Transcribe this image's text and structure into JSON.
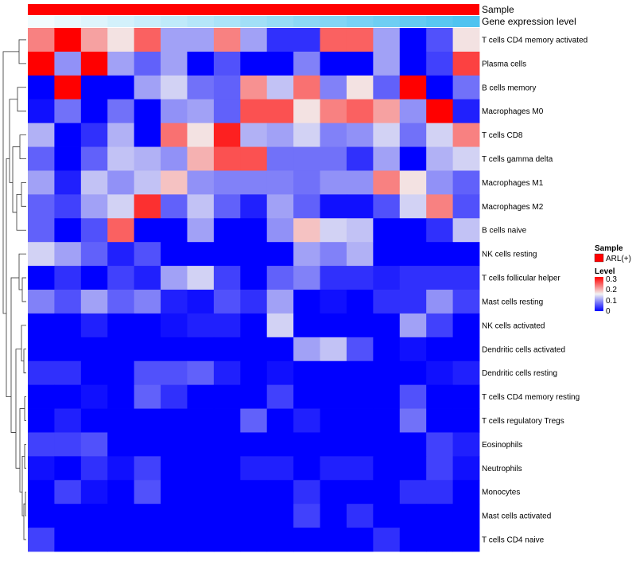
{
  "chart_data": {
    "type": "heatmap",
    "annotation_tracks": [
      "Sample",
      "Gene expression level"
    ],
    "sample_track_color": "#ff0000",
    "gene_expression_gradient": [
      "#f2fbfe",
      "#4fc3f0"
    ],
    "row_labels": [
      "T cells CD4 memory activated",
      "Plasma cells",
      "B cells memory",
      "Macrophages M0",
      "T cells CD8",
      "T cells gamma delta",
      "Macrophages M1",
      "Macrophages M2",
      "B cells naive",
      "NK cells resting",
      "T cells follicular helper",
      "Mast cells resting",
      "NK cells activated",
      "Dendritic cells activated",
      "Dendritic cells resting",
      "T cells CD4 memory resting",
      "T cells regulatory  Tregs",
      "Eosinophils",
      "Neutrophils",
      "Monocytes",
      "Mast cells activated",
      "T cells CD4 naive"
    ],
    "values": [
      [
        0.22,
        0.3,
        0.2,
        0.16,
        0.24,
        0.1,
        0.1,
        0.22,
        0.1,
        0.03,
        0.03,
        0.24,
        0.24,
        0.1,
        0.0,
        0.05,
        0.16
      ],
      [
        0.3,
        0.09,
        0.3,
        0.1,
        0.06,
        0.1,
        0.0,
        0.05,
        0.0,
        0.0,
        0.08,
        0.0,
        0.0,
        0.1,
        0.0,
        0.04,
        0.26
      ],
      [
        0.0,
        0.3,
        0.0,
        0.0,
        0.1,
        0.13,
        0.07,
        0.06,
        0.21,
        0.12,
        0.23,
        0.08,
        0.16,
        0.06,
        0.3,
        0.0,
        0.07
      ],
      [
        0.01,
        0.07,
        0.0,
        0.07,
        0.0,
        0.09,
        0.1,
        0.06,
        0.25,
        0.25,
        0.16,
        0.22,
        0.24,
        0.2,
        0.09,
        0.3,
        0.02
      ],
      [
        0.11,
        0.0,
        0.03,
        0.11,
        0.0,
        0.23,
        0.16,
        0.28,
        0.11,
        0.1,
        0.13,
        0.08,
        0.09,
        0.13,
        0.07,
        0.13,
        0.22
      ],
      [
        0.06,
        0.0,
        0.06,
        0.12,
        0.11,
        0.09,
        0.19,
        0.25,
        0.25,
        0.07,
        0.07,
        0.07,
        0.03,
        0.1,
        0.0,
        0.11,
        0.13
      ],
      [
        0.1,
        0.02,
        0.12,
        0.09,
        0.12,
        0.18,
        0.09,
        0.08,
        0.08,
        0.08,
        0.07,
        0.09,
        0.09,
        0.22,
        0.16,
        0.09,
        0.06
      ],
      [
        0.06,
        0.04,
        0.1,
        0.13,
        0.27,
        0.06,
        0.12,
        0.06,
        0.02,
        0.1,
        0.06,
        0.01,
        0.01,
        0.05,
        0.13,
        0.22,
        0.05
      ],
      [
        0.06,
        0.0,
        0.05,
        0.24,
        0.0,
        0.0,
        0.1,
        0.0,
        0.0,
        0.09,
        0.18,
        0.13,
        0.12,
        0.0,
        0.0,
        0.03,
        0.12
      ],
      [
        0.13,
        0.1,
        0.06,
        0.02,
        0.05,
        0.0,
        0.0,
        0.0,
        0.0,
        0.0,
        0.1,
        0.08,
        0.11,
        0.0,
        0.0,
        0.0,
        0.0
      ],
      [
        0.0,
        0.03,
        0.0,
        0.04,
        0.02,
        0.1,
        0.13,
        0.04,
        0.0,
        0.06,
        0.08,
        0.03,
        0.03,
        0.02,
        0.03,
        0.03,
        0.03
      ],
      [
        0.08,
        0.05,
        0.1,
        0.06,
        0.08,
        0.02,
        0.01,
        0.05,
        0.03,
        0.1,
        0.0,
        0.01,
        0.0,
        0.03,
        0.03,
        0.09,
        0.04
      ],
      [
        0.0,
        0.0,
        0.02,
        0.0,
        0.0,
        0.01,
        0.02,
        0.02,
        0.0,
        0.13,
        0.0,
        0.0,
        0.0,
        0.0,
        0.1,
        0.04,
        0.0
      ],
      [
        0.0,
        0.0,
        0.0,
        0.0,
        0.0,
        0.0,
        0.0,
        0.0,
        0.0,
        0.0,
        0.1,
        0.12,
        0.05,
        0.0,
        0.01,
        0.0,
        0.0
      ],
      [
        0.03,
        0.03,
        0.0,
        0.0,
        0.05,
        0.05,
        0.06,
        0.02,
        0.0,
        0.01,
        0.0,
        0.0,
        0.0,
        0.0,
        0.0,
        0.01,
        0.02
      ],
      [
        0.0,
        0.0,
        0.01,
        0.0,
        0.06,
        0.03,
        0.0,
        0.0,
        0.0,
        0.04,
        0.0,
        0.0,
        0.0,
        0.0,
        0.05,
        0.0,
        0.0
      ],
      [
        0.0,
        0.02,
        0.0,
        0.0,
        0.0,
        0.0,
        0.0,
        0.0,
        0.06,
        0.0,
        0.02,
        0.0,
        0.0,
        0.0,
        0.07,
        0.0,
        0.0
      ],
      [
        0.04,
        0.04,
        0.05,
        0.0,
        0.0,
        0.0,
        0.0,
        0.0,
        0.0,
        0.0,
        0.0,
        0.0,
        0.0,
        0.0,
        0.0,
        0.04,
        0.02
      ],
      [
        0.01,
        0.0,
        0.03,
        0.01,
        0.04,
        0.0,
        0.0,
        0.0,
        0.02,
        0.02,
        0.0,
        0.02,
        0.02,
        0.0,
        0.0,
        0.04,
        0.01
      ],
      [
        0.0,
        0.04,
        0.01,
        0.0,
        0.05,
        0.0,
        0.0,
        0.0,
        0.0,
        0.0,
        0.03,
        0.0,
        0.0,
        0.0,
        0.03,
        0.03,
        0.0
      ],
      [
        0.0,
        0.0,
        0.0,
        0.0,
        0.0,
        0.0,
        0.0,
        0.0,
        0.0,
        0.0,
        0.04,
        0.0,
        0.03,
        0.0,
        0.0,
        0.0,
        0.0
      ],
      [
        0.04,
        0.0,
        0.0,
        0.0,
        0.0,
        0.0,
        0.0,
        0.0,
        0.0,
        0.0,
        0.0,
        0.0,
        0.0,
        0.03,
        0.0,
        0.0,
        0.0
      ]
    ],
    "color_scale": {
      "min": 0,
      "mid": 0.15,
      "max": 0.3,
      "low_color": "#0000ff",
      "mid_color": "#f2f2f2",
      "high_color": "#ff0000"
    },
    "legend": {
      "sample_title": "Sample",
      "sample_entry": "ARL(+)",
      "level_title": "Level",
      "level_ticks": [
        "0.3",
        "0.2",
        "0.1",
        "0"
      ]
    },
    "dendrogram": "rows"
  }
}
